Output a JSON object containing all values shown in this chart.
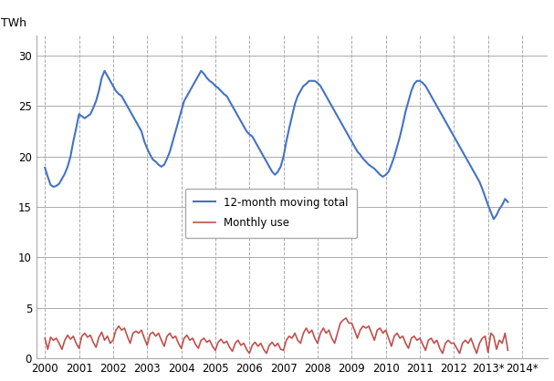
{
  "title": "",
  "ylabel": "TWh",
  "ylim": [
    0,
    32
  ],
  "yticks": [
    0,
    5,
    10,
    15,
    20,
    25,
    30
  ],
  "xlim_start": 1999.75,
  "xlim_end": 2014.75,
  "xtick_labels": [
    "2000",
    "2001",
    "2002",
    "2003",
    "2004",
    "2005",
    "2006",
    "2007",
    "2008",
    "2009",
    "2010",
    "2011",
    "2012",
    "2013*",
    "2014*"
  ],
  "line1_color": "#4472C4",
  "line2_color": "#C0504D",
  "legend_line1": "12-month moving total",
  "legend_line2": "Monthly use",
  "background_color": "#ffffff",
  "moving_total": [
    18.9,
    18.0,
    17.2,
    17.0,
    17.1,
    17.3,
    17.8,
    18.3,
    19.0,
    20.0,
    21.5,
    22.8,
    24.2,
    24.0,
    23.8,
    24.0,
    24.2,
    24.8,
    25.5,
    26.5,
    27.8,
    28.5,
    28.0,
    27.5,
    27.0,
    26.5,
    26.2,
    26.0,
    25.5,
    25.0,
    24.5,
    24.0,
    23.5,
    23.0,
    22.5,
    21.5,
    20.8,
    20.2,
    19.7,
    19.5,
    19.2,
    19.0,
    19.2,
    19.8,
    20.5,
    21.5,
    22.5,
    23.5,
    24.5,
    25.5,
    26.0,
    26.5,
    27.0,
    27.5,
    28.0,
    28.5,
    28.2,
    27.8,
    27.5,
    27.3,
    27.0,
    26.8,
    26.5,
    26.2,
    26.0,
    25.5,
    25.0,
    24.5,
    24.0,
    23.5,
    23.0,
    22.5,
    22.2,
    22.0,
    21.5,
    21.0,
    20.5,
    20.0,
    19.5,
    19.0,
    18.5,
    18.2,
    18.5,
    19.0,
    20.0,
    21.5,
    22.8,
    24.0,
    25.2,
    26.0,
    26.5,
    27.0,
    27.2,
    27.5,
    27.5,
    27.5,
    27.3,
    27.0,
    26.5,
    26.0,
    25.5,
    25.0,
    24.5,
    24.0,
    23.5,
    23.0,
    22.5,
    22.0,
    21.5,
    21.0,
    20.5,
    20.2,
    19.8,
    19.5,
    19.2,
    19.0,
    18.8,
    18.5,
    18.2,
    18.0,
    18.2,
    18.5,
    19.2,
    20.0,
    21.0,
    22.0,
    23.2,
    24.5,
    25.5,
    26.5,
    27.2,
    27.5,
    27.5,
    27.3,
    27.0,
    26.5,
    26.0,
    25.5,
    25.0,
    24.5,
    24.0,
    23.5,
    23.0,
    22.5,
    22.0,
    21.5,
    21.0,
    20.5,
    20.0,
    19.5,
    19.0,
    18.5,
    18.0,
    17.5,
    16.8,
    16.0,
    15.2,
    14.5,
    13.8,
    14.2,
    14.8,
    15.2,
    15.8,
    15.5
  ],
  "monthly_use": [
    2.0,
    0.9,
    2.1,
    1.8,
    2.0,
    1.5,
    0.9,
    1.8,
    2.3,
    1.9,
    2.2,
    1.5,
    1.0,
    2.2,
    2.5,
    2.1,
    2.3,
    1.6,
    1.1,
    2.1,
    2.6,
    1.8,
    2.2,
    1.5,
    1.8,
    2.8,
    3.2,
    2.8,
    3.0,
    2.2,
    1.5,
    2.5,
    2.7,
    2.5,
    2.8,
    2.0,
    1.3,
    2.4,
    2.6,
    2.2,
    2.5,
    1.8,
    1.2,
    2.2,
    2.5,
    2.0,
    2.2,
    1.5,
    1.0,
    2.0,
    2.3,
    1.8,
    2.0,
    1.4,
    1.0,
    1.8,
    2.0,
    1.6,
    1.8,
    1.2,
    0.8,
    1.6,
    1.9,
    1.5,
    1.7,
    1.1,
    0.7,
    1.5,
    1.8,
    1.3,
    1.5,
    0.9,
    0.5,
    1.3,
    1.6,
    1.2,
    1.5,
    0.9,
    0.5,
    1.3,
    1.6,
    1.2,
    1.5,
    0.9,
    0.8,
    1.8,
    2.2,
    2.0,
    2.5,
    1.8,
    1.5,
    2.5,
    3.0,
    2.5,
    2.8,
    2.0,
    1.5,
    2.5,
    3.0,
    2.5,
    2.8,
    2.0,
    1.5,
    2.5,
    3.5,
    3.8,
    4.0,
    3.5,
    3.5,
    2.8,
    2.0,
    2.8,
    3.2,
    3.0,
    3.2,
    2.5,
    1.8,
    2.8,
    3.0,
    2.5,
    2.8,
    2.0,
    1.2,
    2.2,
    2.5,
    2.0,
    2.2,
    1.5,
    1.0,
    2.0,
    2.2,
    1.8,
    2.0,
    1.4,
    0.8,
    1.8,
    2.0,
    1.5,
    1.8,
    1.0,
    0.5,
    1.5,
    1.8,
    1.5,
    1.5,
    1.0,
    0.5,
    1.5,
    1.8,
    1.5,
    2.0,
    1.2,
    0.5,
    1.5,
    2.0,
    2.2,
    0.6,
    2.5,
    2.2,
    0.9,
    1.8,
    1.5,
    2.5,
    0.8
  ]
}
